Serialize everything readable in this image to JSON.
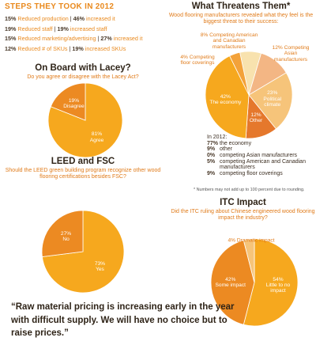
{
  "steps": {
    "title": "STEPS THEY TOOK IN 2012",
    "rows": [
      {
        "left_pct": "15%",
        "left_text": "Reduced production",
        "right_pct": "46%",
        "right_text": "increased it"
      },
      {
        "left_pct": "19%",
        "left_text": "Reduced staff",
        "right_pct": "19%",
        "right_text": "increased staff"
      },
      {
        "left_pct": "15%",
        "left_text": "Reduced marketing/advertising",
        "right_pct": "27%",
        "right_text": "increased it"
      },
      {
        "left_pct": "12%",
        "left_text": "Reduced # of SKUs",
        "right_pct": "19%",
        "right_text": "increased SKUs"
      }
    ]
  },
  "chart_data": [
    {
      "type": "pie",
      "title": "On Board with Lacey?",
      "subtitle": "Do you agree or disagree with the Lacey Act?",
      "categories": [
        "Agree",
        "Disagree"
      ],
      "values": [
        81,
        19
      ],
      "value_labels": [
        "81%",
        "19%"
      ],
      "colors": [
        "#f6a81e",
        "#ec8a22"
      ]
    },
    {
      "type": "pie",
      "title": "LEED and FSC",
      "subtitle": "Should the LEED green building program recognize other wood flooring certifications besides FSC?",
      "categories": [
        "Yes",
        "No"
      ],
      "values": [
        73,
        27
      ],
      "value_labels": [
        "73%",
        "27%"
      ],
      "colors": [
        "#f6a81e",
        "#ec8a22"
      ]
    },
    {
      "type": "pie",
      "title": "What Threatens Them*",
      "subtitle": "Wood flooring manufacturers revealed what they feel is the biggest threat to their success:",
      "categories": [
        "Competing American and Canadian manufacturers",
        "Competing Asian manufacturers",
        "Political climate",
        "Other",
        "The economy",
        "Competing floor coverings"
      ],
      "values": [
        8,
        12,
        23,
        12,
        42,
        4
      ],
      "value_labels": [
        "8%",
        "12%",
        "23%",
        "12%",
        "42%",
        "4%"
      ],
      "colors": [
        "#f8e2ae",
        "#f3b684",
        "#f6c47a",
        "#e5782c",
        "#f6a81e",
        "#f3a23a"
      ],
      "note": "* Numbers may not add up to 100 percent due to rounding.",
      "comparison": {
        "title": "In 2012:",
        "items": [
          {
            "pct": "77%",
            "text": "the economy"
          },
          {
            "pct": "9%",
            "text": "other"
          },
          {
            "pct": "0%",
            "text": "competing Asian manufacturers"
          },
          {
            "pct": "5%",
            "text": "competing American and Canadian manufacturers"
          },
          {
            "pct": "9%",
            "text": "competing floor coverings"
          }
        ]
      }
    },
    {
      "type": "pie",
      "title": "ITC Impact",
      "subtitle": "Did the ITC ruling about Chinese engineered wood flooring impact the industry?",
      "categories": [
        "Little to no impact",
        "Some impact",
        "Dramatic impact"
      ],
      "values": [
        54,
        42,
        4
      ],
      "value_labels": [
        "54%",
        "42%",
        "4%"
      ],
      "colors": [
        "#f6a81e",
        "#ec8a22",
        "#f6c47a"
      ]
    }
  ],
  "quote": "“Raw material pricing is increasing early in the year with difficult supply. We will have no choice but to raise prices.”"
}
